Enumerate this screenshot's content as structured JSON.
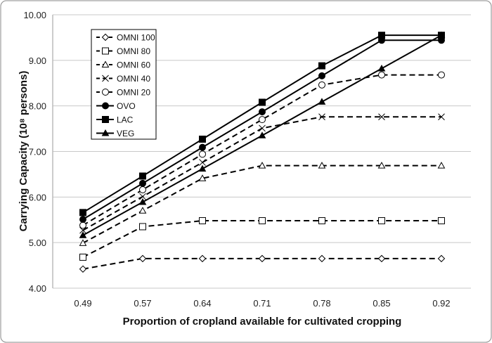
{
  "chart_data": {
    "type": "line",
    "xlabel": "Proportion of cropland available for cultivated cropping",
    "ylabel": "Carrying Capacity (10⁸ persons)",
    "categories": [
      "0.49",
      "0.57",
      "0.64",
      "0.71",
      "0.78",
      "0.85",
      "0.92"
    ],
    "ylim": [
      4,
      10
    ],
    "yticks": [
      "4.00",
      "5.00",
      "6.00",
      "7.00",
      "8.00",
      "9.00",
      "10.00"
    ],
    "grid": true,
    "legend": "top-left",
    "series": [
      {
        "name": "OMNI 100",
        "marker": "diamond-open",
        "dash": true,
        "values": [
          4.42,
          4.65,
          4.65,
          4.65,
          4.65,
          4.65,
          4.65
        ]
      },
      {
        "name": "OMNI 80",
        "marker": "square-open",
        "dash": true,
        "values": [
          4.68,
          5.35,
          5.48,
          5.48,
          5.48,
          5.48,
          5.48
        ]
      },
      {
        "name": "OMNI 60",
        "marker": "triangle-open",
        "dash": true,
        "values": [
          4.99,
          5.7,
          6.41,
          6.69,
          6.69,
          6.69,
          6.69
        ]
      },
      {
        "name": "OMNI 40",
        "marker": "x",
        "dash": true,
        "values": [
          5.27,
          6.01,
          6.76,
          7.51,
          7.76,
          7.76,
          7.76
        ]
      },
      {
        "name": "OMNI 20",
        "marker": "circle-open",
        "dash": true,
        "values": [
          5.38,
          6.16,
          6.94,
          7.7,
          8.46,
          8.68,
          8.68
        ]
      },
      {
        "name": "OVO",
        "marker": "circle",
        "dash": false,
        "values": [
          5.51,
          6.3,
          7.09,
          7.87,
          8.66,
          9.44,
          9.44
        ]
      },
      {
        "name": "LAC",
        "marker": "square",
        "dash": false,
        "values": [
          5.66,
          6.46,
          7.27,
          8.08,
          8.88,
          9.55,
          9.55
        ]
      },
      {
        "name": "VEG",
        "marker": "triangle",
        "dash": false,
        "values": [
          5.16,
          5.89,
          6.62,
          7.35,
          8.09,
          8.82,
          9.55
        ]
      }
    ],
    "colors": {
      "line": "#000000",
      "grid": "#c8c8c8"
    }
  }
}
